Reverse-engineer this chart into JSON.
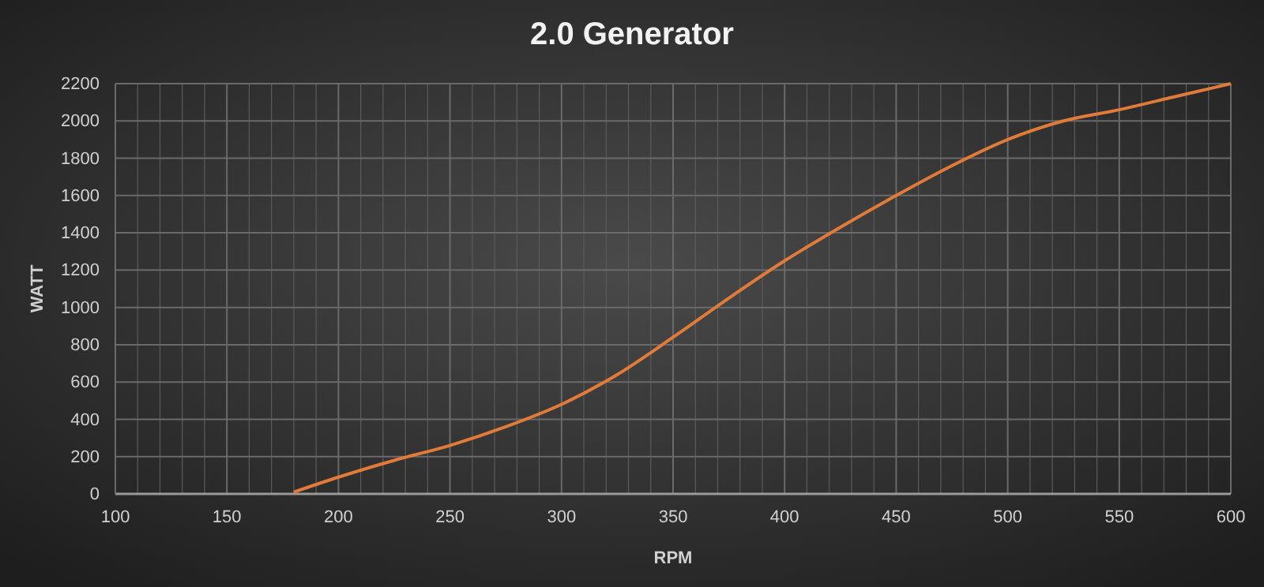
{
  "chart_data": {
    "type": "line",
    "title": "2.0 Generator",
    "xlabel": "RPM",
    "ylabel": "WATT",
    "xlim": [
      100,
      600
    ],
    "xticks": [
      100,
      150,
      200,
      250,
      300,
      350,
      400,
      450,
      500,
      550,
      600
    ],
    "ylim": [
      0,
      2200
    ],
    "yticks": [
      0,
      200,
      400,
      600,
      800,
      1000,
      1200,
      1400,
      1600,
      1800,
      2000,
      2200
    ],
    "grid": true,
    "marker": "none",
    "series": [
      {
        "color": "#e07b39",
        "x": [
          180,
          200,
          225,
          250,
          275,
          300,
          325,
          350,
          375,
          400,
          425,
          450,
          475,
          500,
          525,
          550,
          575,
          600
        ],
        "values": [
          10,
          90,
          180,
          260,
          360,
          480,
          640,
          840,
          1050,
          1250,
          1430,
          1600,
          1760,
          1900,
          2000,
          2060,
          2130,
          2200
        ]
      }
    ]
  }
}
